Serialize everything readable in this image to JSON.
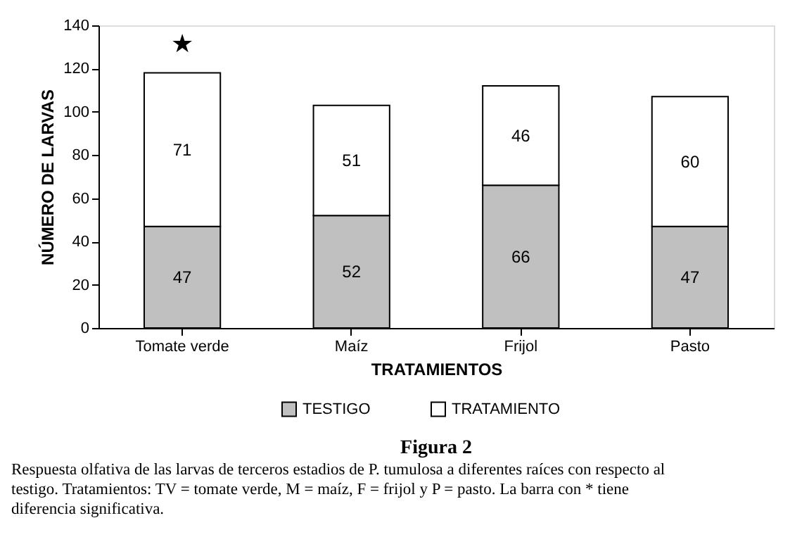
{
  "chart_data": {
    "type": "bar",
    "stacked": true,
    "title": "Figura 2",
    "xlabel": "TRATAMIENTOS",
    "ylabel": "NÚMERO DE LARVAS",
    "categories": [
      "Tomate verde",
      "Maíz",
      "Frijol",
      "Pasto"
    ],
    "series": [
      {
        "name": "TESTIGO",
        "color": "#c0c0c0",
        "values": [
          47,
          52,
          66,
          47
        ]
      },
      {
        "name": "TRATAMIENTO",
        "color": "#ffffff",
        "values": [
          71,
          51,
          46,
          60
        ]
      }
    ],
    "ylim": [
      0,
      140
    ],
    "yticks": [
      0,
      20,
      40,
      60,
      80,
      100,
      120,
      140
    ],
    "grid": false,
    "legend": "bottom",
    "data_labels": true,
    "annotations": [
      "★",
      "Respuesta olfativa de las larvas de terceros estadios de P. tumulosa a diferentes raíces con respecto al testigo. Tratamientos: TV = tomate verde, M = maíz, F = frijol y P = pasto. La barra con * tiene diferencia significativa."
    ]
  }
}
